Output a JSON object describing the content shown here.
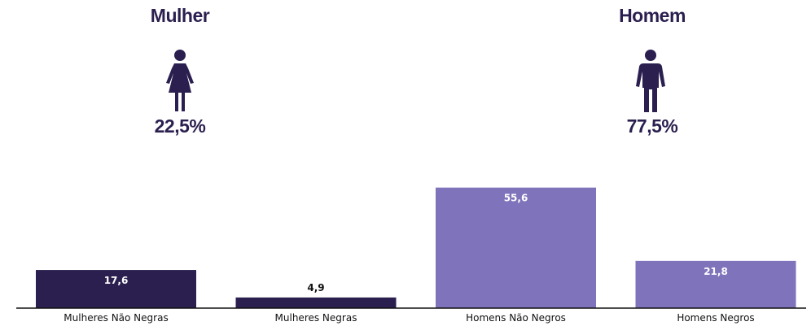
{
  "groups": {
    "female": {
      "title": "Mulher",
      "percent": "22,5%"
    },
    "male": {
      "title": "Homem",
      "percent": "77,5%"
    }
  },
  "colors": {
    "dark_purple": "#2b1f4f",
    "light_purple": "#7f73bb",
    "label_on_bar": "#ffffff",
    "label_above_bar": "#111111",
    "axis": "#111111"
  },
  "chart_data": {
    "type": "bar",
    "categories": [
      "Mulheres Não Negras",
      "Mulheres Negras",
      "Homens Não Negros",
      "Homens Negros"
    ],
    "values": [
      17.6,
      4.9,
      55.6,
      21.8
    ],
    "value_labels": [
      "17,6",
      "4,9",
      "55,6",
      "21,8"
    ],
    "bar_colors": [
      "#2b1f4f",
      "#2b1f4f",
      "#7f73bb",
      "#7f73bb"
    ],
    "label_inside": [
      true,
      false,
      true,
      true
    ],
    "title": "",
    "xlabel": "",
    "ylabel": "",
    "ylim": [
      0,
      60
    ],
    "grid": false,
    "legend": "none"
  }
}
